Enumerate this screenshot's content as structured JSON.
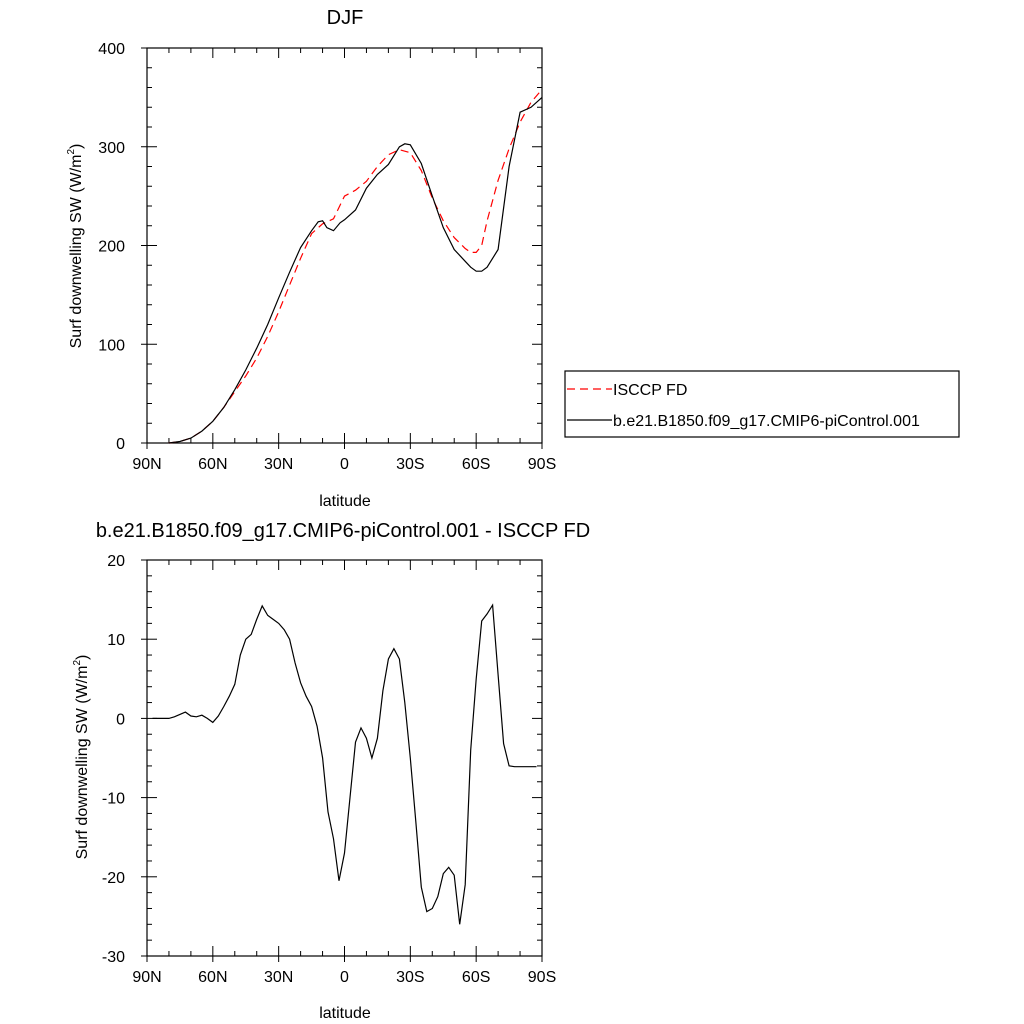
{
  "chart_data": [
    {
      "type": "line",
      "title": "DJF",
      "xlabel": "latitude",
      "ylabel": "Surf downwelling SW (W/m",
      "ylabel_sup": "2",
      "ylabel_close": ")",
      "xlim": [
        -90,
        90
      ],
      "ylim": [
        0,
        400
      ],
      "xticks": [
        -90,
        -60,
        -30,
        0,
        30,
        60,
        90
      ],
      "xtick_labels": [
        "90N",
        "60N",
        "30N",
        "0",
        "30S",
        "60S",
        "90S"
      ],
      "yticks": [
        0,
        100,
        200,
        300,
        400
      ],
      "ytick_labels": [
        "0",
        "100",
        "200",
        "300",
        "400"
      ],
      "legend": {
        "position": "right",
        "entries": [
          "ISCCP FD",
          "b.e21.B1850.f09_g17.CMIP6-piControl.001"
        ]
      },
      "series": [
        {
          "name": "ISCCP FD",
          "color": "#ff0000",
          "style": "dashed",
          "x": [
            -80,
            -75,
            -70,
            -65,
            -60,
            -55,
            -50,
            -45,
            -40,
            -35,
            -30,
            -25,
            -20,
            -15,
            -10,
            -5,
            0,
            5,
            10,
            15,
            20,
            25,
            30,
            35,
            40,
            45,
            50,
            55,
            57.5,
            60,
            62.5,
            65,
            70,
            75,
            80,
            85,
            90
          ],
          "y": [
            0,
            1.5,
            5,
            12,
            22,
            36,
            52,
            68,
            86,
            108,
            133,
            160,
            187,
            212,
            222,
            227,
            250,
            256,
            265,
            280,
            292,
            297,
            294,
            276,
            248,
            225,
            208,
            197,
            193,
            193,
            200,
            225,
            266,
            298,
            325,
            345,
            358
          ]
        },
        {
          "name": "b.e21.B1850.f09_g17.CMIP6-piControl.001",
          "color": "#000000",
          "style": "solid",
          "x": [
            -80,
            -75,
            -70,
            -65,
            -60,
            -55,
            -50,
            -45,
            -40,
            -35,
            -30,
            -25,
            -20,
            -15,
            -12,
            -10,
            -8,
            -5,
            -2,
            0,
            5,
            10,
            15,
            20,
            25,
            27.5,
            30,
            35,
            40,
            45,
            50,
            55,
            57.5,
            60,
            62.5,
            65,
            70,
            75,
            80,
            85,
            90
          ],
          "y": [
            0,
            1.5,
            5,
            12,
            22,
            36,
            54,
            74,
            96,
            120,
            147,
            173,
            198,
            215,
            224,
            225,
            218,
            215,
            223,
            226,
            236,
            258,
            272,
            282,
            300,
            303,
            302,
            283,
            250,
            218,
            196,
            184,
            178,
            174,
            174,
            178,
            196,
            280,
            335,
            340,
            350
          ]
        }
      ]
    },
    {
      "type": "line",
      "title": "b.e21.B1850.f09_g17.CMIP6-piControl.001 - ISCCP FD",
      "xlabel": "latitude",
      "ylabel": "Surf downwelling SW (W/m",
      "ylabel_sup": "2",
      "ylabel_close": ")",
      "xlim": [
        -90,
        90
      ],
      "ylim": [
        -30,
        20
      ],
      "xticks": [
        -90,
        -60,
        -30,
        0,
        30,
        60,
        90
      ],
      "xtick_labels": [
        "90N",
        "60N",
        "30N",
        "0",
        "30S",
        "60S",
        "90S"
      ],
      "yticks": [
        -30,
        -20,
        -10,
        0,
        10,
        20
      ],
      "ytick_labels": [
        "-30",
        "-20",
        "-10",
        "0",
        "10",
        "20"
      ],
      "series": [
        {
          "color": "#000000",
          "style": "solid",
          "x": [
            -87.5,
            -85,
            -80,
            -77.5,
            -75,
            -72.5,
            -70,
            -67.5,
            -65,
            -62.5,
            -60,
            -57.5,
            -55,
            -52.5,
            -50,
            -47.5,
            -45,
            -42.5,
            -40,
            -37.5,
            -35,
            -32.5,
            -30,
            -27.5,
            -25,
            -22.5,
            -20,
            -17.5,
            -15,
            -12.5,
            -10,
            -7.5,
            -5,
            -2.5,
            0,
            2.5,
            5,
            7.5,
            10,
            12.5,
            15,
            17.5,
            20,
            22.5,
            25,
            27.5,
            30,
            32.5,
            35,
            37.5,
            40,
            42.5,
            45,
            47.5,
            50,
            52.5,
            55,
            57.5,
            60,
            62.5,
            65,
            67.5,
            70,
            72.5,
            75,
            77.5,
            80,
            82.5,
            85,
            87.5
          ],
          "y": [
            0,
            0,
            0,
            0.2,
            0.5,
            0.8,
            0.3,
            0.2,
            0.4,
            0,
            -0.5,
            0.3,
            1.5,
            2.8,
            4.3,
            8,
            10,
            10.6,
            12.5,
            14.2,
            13,
            12.5,
            12,
            11.2,
            10,
            7,
            4.5,
            2.8,
            1.5,
            -1,
            -5,
            -11.8,
            -15.2,
            -20.5,
            -17,
            -10,
            -3,
            -1.2,
            -2.5,
            -5,
            -2.5,
            3.5,
            7.5,
            8.8,
            7.5,
            2,
            -5,
            -13,
            -21.3,
            -24.4,
            -24,
            -22.5,
            -19.6,
            -18.8,
            -19.8,
            -26,
            -21,
            -4,
            5,
            12.3,
            13.2,
            14.3,
            5.5,
            -3.2,
            -6,
            -6.1,
            -6.1,
            -6.1,
            -6.1,
            -6.1
          ],
          "x_trim": 89
        }
      ]
    }
  ]
}
